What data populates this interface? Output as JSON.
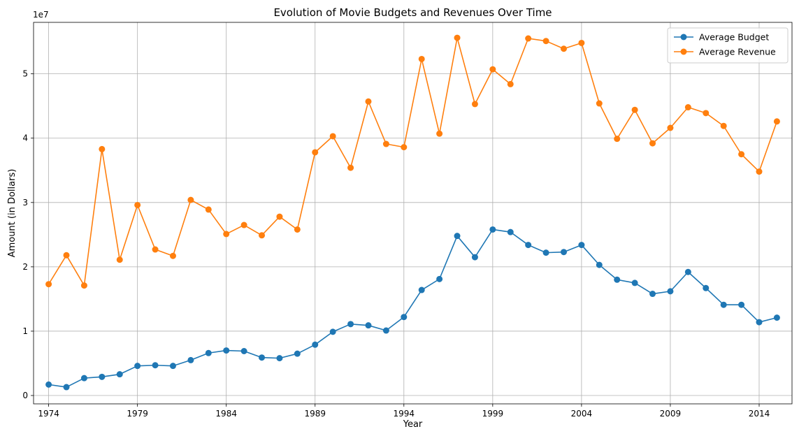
{
  "chart_data": {
    "type": "line",
    "title": "Evolution of Movie Budgets and Revenues Over Time",
    "xlabel": "Year",
    "ylabel": "Amount (in Dollars)",
    "y_offset_label": "1e7",
    "xlim": [
      1973.15,
      2015.85
    ],
    "ylim": [
      -0.13,
      5.8
    ],
    "y_unit_multiplier": 10000000,
    "x_ticks": [
      1974,
      1979,
      1984,
      1989,
      1994,
      1999,
      2004,
      2009,
      2014
    ],
    "y_ticks": [
      0,
      1,
      2,
      3,
      4,
      5
    ],
    "grid": true,
    "legend_position": "top-right",
    "x": [
      1974,
      1975,
      1976,
      1977,
      1978,
      1979,
      1980,
      1981,
      1982,
      1983,
      1984,
      1985,
      1986,
      1987,
      1988,
      1989,
      1990,
      1991,
      1992,
      1993,
      1994,
      1995,
      1996,
      1997,
      1998,
      1999,
      2000,
      2001,
      2002,
      2003,
      2004,
      2005,
      2006,
      2007,
      2008,
      2009,
      2010,
      2011,
      2012,
      2013,
      2014,
      2015
    ],
    "series": [
      {
        "name": "Average Budget",
        "color": "#1f77b4",
        "values": [
          0.17,
          0.13,
          0.27,
          0.29,
          0.33,
          0.46,
          0.47,
          0.46,
          0.55,
          0.66,
          0.7,
          0.69,
          0.59,
          0.58,
          0.65,
          0.79,
          0.99,
          1.11,
          1.09,
          1.01,
          1.22,
          1.64,
          1.81,
          2.48,
          2.15,
          2.58,
          2.54,
          2.34,
          2.22,
          2.23,
          2.34,
          2.03,
          1.8,
          1.75,
          1.58,
          1.62,
          1.92,
          1.67,
          1.41,
          1.41,
          1.14,
          1.21
        ]
      },
      {
        "name": "Average Revenue",
        "color": "#ff7f0e",
        "values": [
          1.73,
          2.18,
          1.71,
          3.83,
          2.11,
          2.96,
          2.27,
          2.17,
          3.04,
          2.89,
          2.51,
          2.65,
          2.49,
          2.78,
          2.58,
          3.78,
          4.03,
          3.54,
          4.57,
          3.91,
          3.86,
          5.23,
          4.07,
          5.56,
          4.53,
          5.07,
          4.84,
          5.55,
          5.51,
          5.39,
          5.48,
          4.54,
          3.99,
          4.44,
          3.92,
          4.16,
          4.48,
          4.39,
          4.19,
          3.75,
          3.48,
          4.26
        ]
      }
    ]
  }
}
